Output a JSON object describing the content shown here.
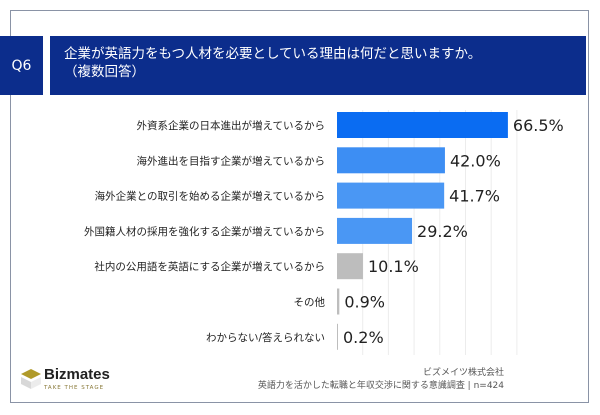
{
  "header": {
    "q": "Q6",
    "title": "企業が英語力をもつ人材を必要としている理由は何だと思いますか。",
    "subtitle": "（複数回答）"
  },
  "chart_data": {
    "type": "bar",
    "orientation": "horizontal",
    "xlim": [
      0,
      70
    ],
    "grid": true,
    "categories": [
      "外資系企業の日本進出が増えているから",
      "海外進出を目指す企業が増えているから",
      "海外企業との取引を始める企業が増えているから",
      "外国籍人材の採用を強化する企業が増えているから",
      "社内の公用語を英語にする企業が増えているから",
      "その他",
      "わからない/答えられない"
    ],
    "values": [
      66.5,
      42.0,
      41.7,
      29.2,
      10.1,
      0.9,
      0.2
    ],
    "labels": [
      "66.5%",
      "42.0%",
      "41.7%",
      "29.2%",
      "10.1%",
      "0.9%",
      "0.2%"
    ],
    "colors": [
      "#0a6cf2",
      "#3d8ef3",
      "#4a97f4",
      "#4a97f4",
      "#bdbdbd",
      "#bdbdbd",
      "#bdbdbd"
    ]
  },
  "footer": {
    "brand": "Bizmates",
    "tagline": "TAKE THE STAGE",
    "company": "ビズメイツ株式会社",
    "survey": "英語力を活かした転職と年収交渉に関する意識調査 | n=424"
  }
}
